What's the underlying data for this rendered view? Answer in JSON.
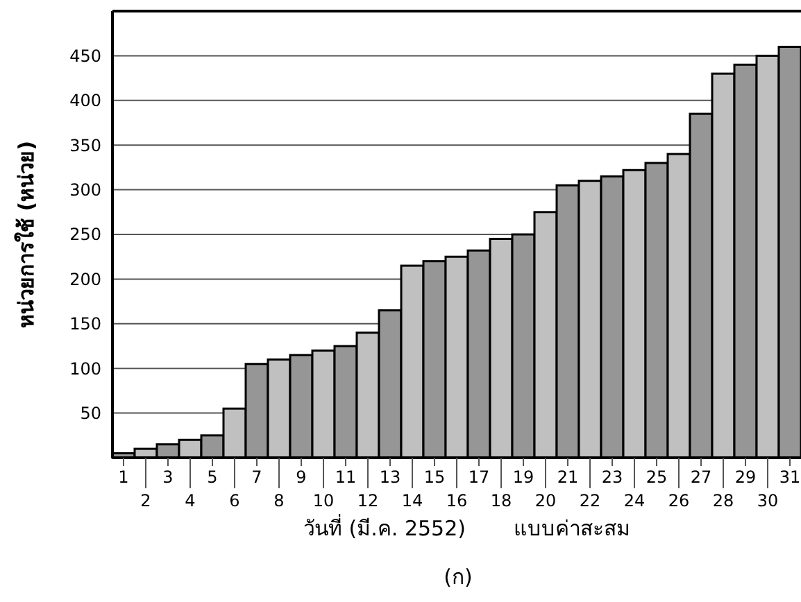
{
  "chart_data": {
    "type": "bar",
    "xlabel": "วันที่ (มี.ค. 2552)",
    "ylabel": "หน่วยการใช้ (หน่วย)",
    "annotations": [
      "แบบค่าสะสม",
      "(ก)"
    ],
    "categories": [
      "1",
      "2",
      "3",
      "4",
      "5",
      "6",
      "7",
      "8",
      "9",
      "10",
      "11",
      "12",
      "13",
      "14",
      "15",
      "16",
      "17",
      "18",
      "19",
      "20",
      "21",
      "22",
      "23",
      "24",
      "25",
      "26",
      "27",
      "28",
      "29",
      "30",
      "31"
    ],
    "values": [
      5,
      10,
      15,
      20,
      25,
      55,
      105,
      110,
      115,
      120,
      125,
      140,
      165,
      215,
      220,
      225,
      232,
      245,
      250,
      275,
      305,
      310,
      315,
      322,
      330,
      340,
      385,
      430,
      440,
      450,
      460
    ],
    "colors": [
      "#969696",
      "#c0c0c0",
      "#969696",
      "#c0c0c0",
      "#969696",
      "#c0c0c0",
      "#969696",
      "#c0c0c0",
      "#969696",
      "#c0c0c0",
      "#969696",
      "#c0c0c0",
      "#969696",
      "#c0c0c0",
      "#969696",
      "#c0c0c0",
      "#969696",
      "#c0c0c0",
      "#969696",
      "#c0c0c0",
      "#969696",
      "#c0c0c0",
      "#969696",
      "#c0c0c0",
      "#969696",
      "#c0c0c0",
      "#969696",
      "#c0c0c0",
      "#969696",
      "#c0c0c0",
      "#969696"
    ],
    "ylim": [
      0,
      500
    ],
    "yticks": [
      50,
      100,
      150,
      200,
      250,
      300,
      350,
      400,
      450
    ],
    "grid": "y"
  }
}
